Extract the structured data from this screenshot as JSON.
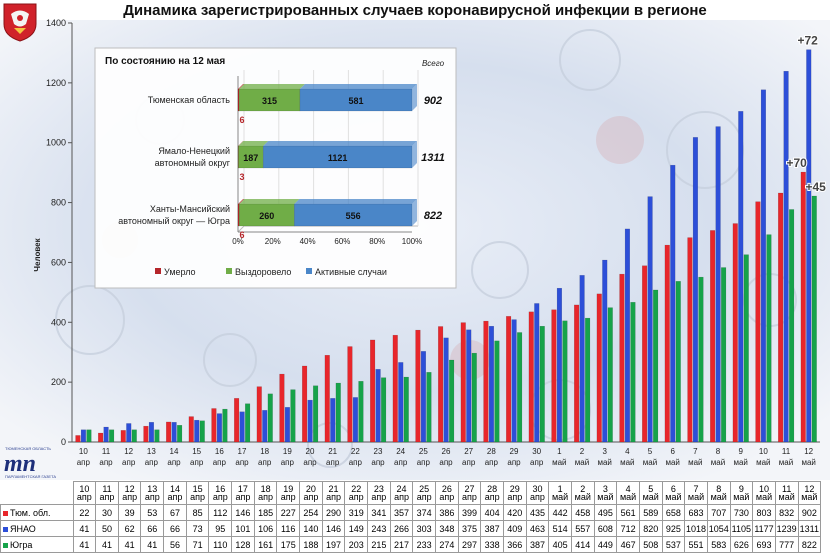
{
  "title": "Динамика зарегистрированных случаев коронавирусной инфекции  в регионе",
  "colors": {
    "tyumen": "#e8262b",
    "yanao": "#2d4fd8",
    "yugra": "#16a34a",
    "died": "#b5262b",
    "recovered": "#70ad47",
    "active": "#4a86c8"
  },
  "chart_data": [
    {
      "type": "bar",
      "title": "",
      "xlabel": "",
      "ylabel": "Человек",
      "ylim": [
        0,
        1400
      ],
      "yticks": [
        0,
        200,
        400,
        600,
        800,
        1000,
        1200,
        1400
      ],
      "grid": false,
      "categories": [
        "10 апр",
        "11 апр",
        "12 апр",
        "13 апр",
        "14 апр",
        "15 апр",
        "16 апр",
        "17 апр",
        "18 апр",
        "19 апр",
        "20 апр",
        "21 апр",
        "22 апр",
        "23 апр",
        "24 апр",
        "25 апр",
        "26 апр",
        "27 апр",
        "28 апр",
        "29 апр",
        "30 апр",
        "1 май",
        "2 май",
        "3 май",
        "4 май",
        "5 май",
        "6 май",
        "7 май",
        "8 май",
        "9 май",
        "10 май",
        "11 май",
        "12 май"
      ],
      "category_parts": [
        [
          "10",
          "апр"
        ],
        [
          "11",
          "апр"
        ],
        [
          "12",
          "апр"
        ],
        [
          "13",
          "апр"
        ],
        [
          "14",
          "апр"
        ],
        [
          "15",
          "апр"
        ],
        [
          "16",
          "апр"
        ],
        [
          "17",
          "апр"
        ],
        [
          "18",
          "апр"
        ],
        [
          "19",
          "апр"
        ],
        [
          "20",
          "апр"
        ],
        [
          "21",
          "апр"
        ],
        [
          "22",
          "апр"
        ],
        [
          "23",
          "апр"
        ],
        [
          "24",
          "апр"
        ],
        [
          "25",
          "апр"
        ],
        [
          "26",
          "апр"
        ],
        [
          "27",
          "апр"
        ],
        [
          "28",
          "апр"
        ],
        [
          "29",
          "апр"
        ],
        [
          "30",
          "апр"
        ],
        [
          "1",
          "май"
        ],
        [
          "2",
          "май"
        ],
        [
          "3",
          "май"
        ],
        [
          "4",
          "май"
        ],
        [
          "5",
          "май"
        ],
        [
          "6",
          "май"
        ],
        [
          "7",
          "май"
        ],
        [
          "8",
          "май"
        ],
        [
          "9",
          "май"
        ],
        [
          "10",
          "май"
        ],
        [
          "11",
          "май"
        ],
        [
          "12",
          "май"
        ]
      ],
      "series": [
        {
          "name": "Тюм. обл.",
          "values": [
            22,
            30,
            39,
            53,
            67,
            85,
            112,
            146,
            185,
            227,
            254,
            290,
            319,
            341,
            357,
            374,
            386,
            399,
            404,
            420,
            435,
            442,
            458,
            495,
            561,
            589,
            658,
            683,
            707,
            730,
            803,
            832,
            902
          ]
        },
        {
          "name": "ЯНАО",
          "values": [
            41,
            50,
            62,
            66,
            66,
            73,
            95,
            101,
            106,
            116,
            140,
            146,
            149,
            243,
            266,
            303,
            348,
            375,
            387,
            409,
            463,
            514,
            557,
            608,
            712,
            820,
            925,
            1018,
            1054,
            1105,
            1177,
            1239,
            1311
          ]
        },
        {
          "name": "Югра",
          "values": [
            41,
            41,
            41,
            41,
            56,
            71,
            110,
            128,
            161,
            175,
            188,
            197,
            203,
            215,
            217,
            233,
            274,
            297,
            338,
            366,
            387,
            405,
            414,
            449,
            467,
            508,
            537,
            551,
            583,
            626,
            693,
            777,
            822
          ]
        }
      ],
      "annotations": [
        "+72",
        "+70",
        "+45"
      ]
    },
    {
      "type": "bar",
      "title": "По состоянию на 12 мая",
      "total_label": "Всего",
      "orientation": "horizontal",
      "stacked": "percent",
      "categories": [
        "Тюменская область",
        "Ямало-Ненецкий автономный округ",
        "Ханты-Мансийский автономный округ — Югра"
      ],
      "category_lines": [
        [
          "Тюменская область"
        ],
        [
          "Ямало-Ненецкий",
          "автономный округ"
        ],
        [
          "Ханты-Мансийский",
          "автономный округ — Югра"
        ]
      ],
      "series": [
        {
          "name": "Умерло",
          "values": [
            6,
            3,
            6
          ]
        },
        {
          "name": "Выздоровело",
          "values": [
            315,
            187,
            260
          ]
        },
        {
          "name": "Активные случаи",
          "values": [
            581,
            1121,
            556
          ]
        }
      ],
      "totals": [
        902,
        1311,
        822
      ],
      "xticks": [
        "0%",
        "20%",
        "40%",
        "60%",
        "80%",
        "100%"
      ],
      "legend_position": "bottom"
    }
  ],
  "table": {
    "row_labels": [
      "Тюм. обл.",
      "ЯНАО",
      "Югра"
    ]
  }
}
